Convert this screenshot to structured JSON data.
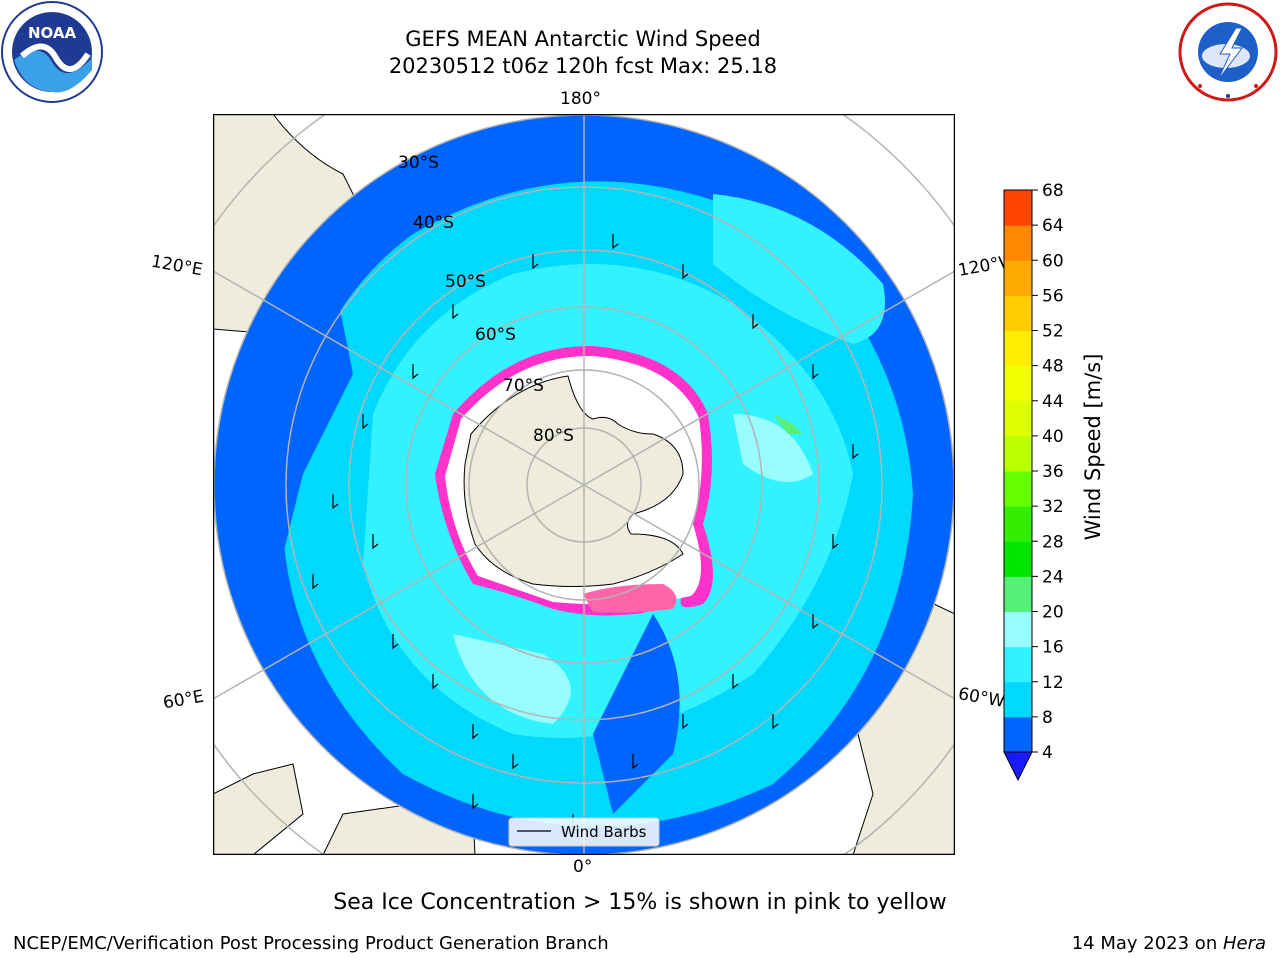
{
  "header": {
    "title_line1": "GEFS MEAN Antarctic Wind Speed",
    "title_line2": "20230512 t06z 120h fcst   Max: 25.18"
  },
  "logos": {
    "left": "noaa-logo",
    "left_text": "NOAA",
    "right": "national-weather-service-logo",
    "right_text": "NATIONAL WEATHER SERVICE"
  },
  "map": {
    "projection": "south-polar-stereographic",
    "longitude_labels": {
      "top": "180°",
      "bottom": "0°",
      "left_upper": "120°E",
      "left_lower": "60°E",
      "right_upper": "120°W",
      "right_lower": "60°W"
    },
    "latitude_labels": [
      "30°S",
      "40°S",
      "50°S",
      "60°S",
      "70°S",
      "80°S"
    ],
    "legend_label": "Wind Barbs",
    "colors": {
      "land": "#eeecdc",
      "ice_edge": "#ff33cc",
      "ice_core": "#ffffff",
      "grid": "#b3b3b3"
    }
  },
  "colorbar": {
    "label": "Wind Speed [m/s]",
    "ticks": [
      "4",
      "8",
      "12",
      "16",
      "20",
      "24",
      "28",
      "32",
      "36",
      "40",
      "44",
      "48",
      "52",
      "56",
      "60",
      "64",
      "68"
    ],
    "colors": [
      "#0064ff",
      "#00d9ff",
      "#33f2ff",
      "#99fcff",
      "#55f077",
      "#00e600",
      "#33ee00",
      "#66ff00",
      "#bbff00",
      "#ddff00",
      "#f2ff00",
      "#ffee00",
      "#ffcc00",
      "#ffaa00",
      "#ff8800",
      "#ff4400",
      "#ff0000"
    ],
    "extend_color": "#1a1aff"
  },
  "caption": "Sea Ice Concentration > 15% is shown in pink to yellow",
  "footer": {
    "left": "NCEP/EMC/Verification Post Processing Product Generation Branch",
    "right_prefix": "14 May 2023 on ",
    "right_host": "Hera"
  }
}
